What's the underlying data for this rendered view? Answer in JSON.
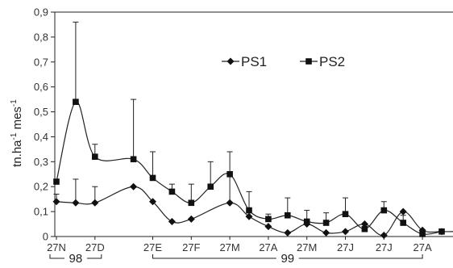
{
  "chart_data": {
    "type": "line",
    "ylabel": {
      "main": "tn.ha",
      "sup1": "-1",
      "mid": " mes",
      "sup2": "-1"
    },
    "ylim": [
      0,
      0.9
    ],
    "yticks": [
      "0",
      "0,1",
      "0,2",
      "0,3",
      "0,4",
      "0,5",
      "0,6",
      "0,7",
      "0,8",
      "0,9"
    ],
    "xticks": [
      "27N",
      "27D",
      "27E",
      "27F",
      "27M",
      "27A",
      "27M",
      "27J",
      "27J",
      "27A"
    ],
    "xtick_pos": [
      0,
      2,
      5,
      7,
      9,
      11,
      13,
      15,
      17,
      19
    ],
    "year_groups": [
      {
        "label": "98",
        "from": 0,
        "to": 2
      },
      {
        "label": "99",
        "from": 5,
        "to": 19
      }
    ],
    "grid": false,
    "legend_position": "top-right",
    "series": [
      {
        "name": "PS1",
        "marker": "diamond",
        "x": [
          0,
          1,
          2,
          4,
          5,
          6,
          7,
          9,
          10,
          11,
          12,
          13,
          14,
          15,
          16,
          17,
          18,
          19,
          20,
          21
        ],
        "values": [
          0.14,
          0.135,
          0.135,
          0.2,
          0.14,
          0.06,
          0.07,
          0.135,
          0.08,
          0.04,
          0.015,
          0.05,
          0.015,
          0.02,
          0.05,
          0.005,
          0.1,
          0.025,
          0.02,
          0.02
        ],
        "error": [
          0.03,
          0.095,
          0.065,
          0.0,
          0.0,
          0.0,
          0.0,
          0.12,
          0.0,
          0.0,
          0.0,
          0.0,
          0.0,
          0.0,
          0.0,
          0.0,
          0.0,
          0.0,
          0.0,
          0.0
        ]
      },
      {
        "name": "PS2",
        "marker": "square",
        "x": [
          0,
          1,
          2,
          4,
          5,
          6,
          7,
          8,
          9,
          10,
          11,
          12,
          13,
          14,
          15,
          16,
          17,
          18,
          19,
          20
        ],
        "values": [
          0.22,
          0.54,
          0.32,
          0.31,
          0.235,
          0.18,
          0.135,
          0.2,
          0.25,
          0.105,
          0.07,
          0.085,
          0.06,
          0.055,
          0.09,
          0.03,
          0.105,
          0.055,
          0.01,
          0.02
        ],
        "error": [
          0.0,
          0.32,
          0.05,
          0.24,
          0.105,
          0.03,
          0.075,
          0.1,
          0.09,
          0.075,
          0.02,
          0.07,
          0.045,
          0.04,
          0.065,
          0.0,
          0.035,
          0.03,
          0.0,
          0.0
        ]
      }
    ]
  }
}
